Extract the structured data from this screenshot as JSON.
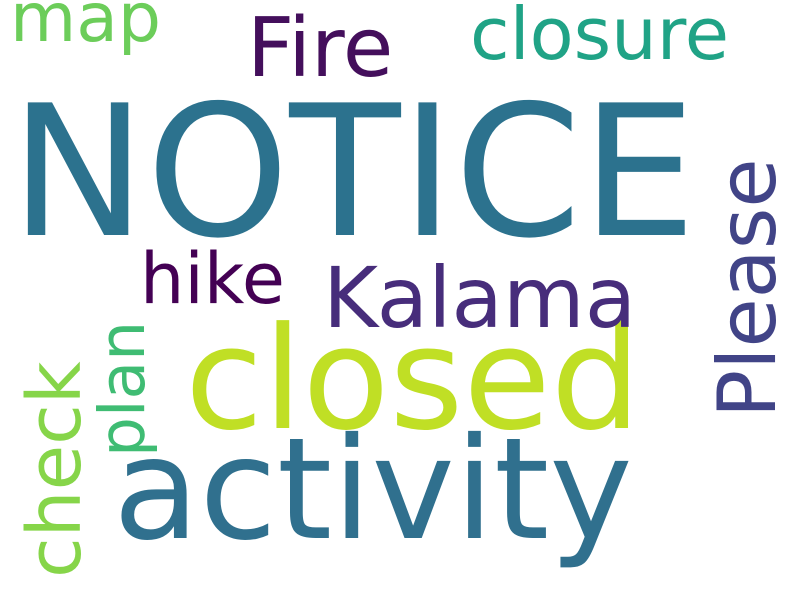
{
  "cloud": {
    "words": [
      {
        "text": "NOTICE",
        "color": "#2c728e",
        "orientation": "horizontal"
      },
      {
        "text": "activity",
        "color": "#30708e",
        "orientation": "horizontal"
      },
      {
        "text": "closed",
        "color": "#c0df25",
        "orientation": "horizontal"
      },
      {
        "text": "Kalama",
        "color": "#472d7b",
        "orientation": "horizontal"
      },
      {
        "text": "Please",
        "color": "#414487",
        "orientation": "vertical"
      },
      {
        "text": "Fire",
        "color": "#440f5c",
        "orientation": "horizontal"
      },
      {
        "text": "closure",
        "color": "#20a386",
        "orientation": "horizontal"
      },
      {
        "text": "check",
        "color": "#86d549",
        "orientation": "vertical"
      },
      {
        "text": "plan",
        "color": "#3fbc73",
        "orientation": "vertical"
      },
      {
        "text": "hike",
        "color": "#440154",
        "orientation": "horizontal"
      },
      {
        "text": "map",
        "color": "#6ccd5a",
        "orientation": "horizontal"
      }
    ]
  }
}
